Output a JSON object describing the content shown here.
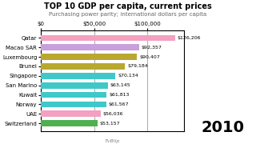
{
  "chart_data": {
    "type": "bar",
    "orientation": "horizontal",
    "title": "TOP 10 GDP per capita, current prices",
    "subtitle": "Purchasing power parity; international dollars per capita",
    "annotations": [
      "2010",
      "TvBlip"
    ],
    "categories": [
      "Qatar",
      "Macao SAR",
      "Luxembourg",
      "Brunei",
      "Singapore",
      "San Marino",
      "Kuwait",
      "Norway",
      "UAE",
      "Switzerland"
    ],
    "values": [
      126206,
      92357,
      90407,
      79184,
      70134,
      63145,
      61813,
      61567,
      56036,
      53157
    ],
    "value_labels": [
      "$126,206",
      "$92,357",
      "$90,407",
      "$79,184",
      "$70,134",
      "$63,145",
      "$61,813",
      "$61,567",
      "$56,036",
      "$53,157"
    ],
    "data_labels": true,
    "colors": [
      "#f4a0c0",
      "#c9a0dc",
      "#b8a830",
      "#b8a830",
      "#40c8c8",
      "#40c8c8",
      "#40c8c8",
      "#40c8c8",
      "#f4a0c0",
      "#50b050"
    ],
    "xlim": [
      0,
      135000
    ],
    "xticks": [
      {
        "value": 0,
        "label": "$0"
      },
      {
        "value": 50000,
        "label": "$50,000"
      },
      {
        "value": 100000,
        "label": "$100,000"
      }
    ],
    "grid": true
  }
}
